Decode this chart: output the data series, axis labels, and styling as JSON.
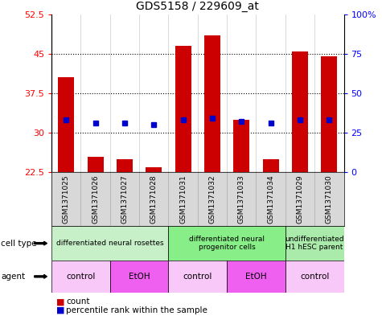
{
  "title": "GDS5158 / 229609_at",
  "samples": [
    "GSM1371025",
    "GSM1371026",
    "GSM1371027",
    "GSM1371028",
    "GSM1371031",
    "GSM1371032",
    "GSM1371033",
    "GSM1371034",
    "GSM1371029",
    "GSM1371030"
  ],
  "counts": [
    40.5,
    25.5,
    25.0,
    23.5,
    46.5,
    48.5,
    32.5,
    25.0,
    45.5,
    44.5
  ],
  "percentiles": [
    33,
    31,
    31,
    30,
    33,
    34,
    32,
    31,
    33,
    33
  ],
  "ylim_left": [
    22.5,
    52.5
  ],
  "ylim_right": [
    0,
    100
  ],
  "yticks_left": [
    22.5,
    30,
    37.5,
    45,
    52.5
  ],
  "yticks_right": [
    0,
    25,
    50,
    75,
    100
  ],
  "cell_types": [
    {
      "label": "differentiated neural rosettes",
      "start": 0,
      "end": 4,
      "color": "#c8f0c8"
    },
    {
      "label": "differentiated neural\nprogenitor cells",
      "start": 4,
      "end": 8,
      "color": "#88ee88"
    },
    {
      "label": "undifferentiated\nH1 hESC parent",
      "start": 8,
      "end": 10,
      "color": "#aaeaaa"
    }
  ],
  "agents": [
    {
      "label": "control",
      "start": 0,
      "end": 2,
      "color": "#f8c8f8"
    },
    {
      "label": "EtOH",
      "start": 2,
      "end": 4,
      "color": "#f060f0"
    },
    {
      "label": "control",
      "start": 4,
      "end": 6,
      "color": "#f8c8f8"
    },
    {
      "label": "EtOH",
      "start": 6,
      "end": 8,
      "color": "#f060f0"
    },
    {
      "label": "control",
      "start": 8,
      "end": 10,
      "color": "#f8c8f8"
    }
  ],
  "bar_color": "#cc0000",
  "percentile_color": "#0000cc",
  "background_color": "#ffffff",
  "label_row_label_fontsize": 7.5,
  "sample_fontsize": 6.5,
  "cell_type_fontsize": 6.5,
  "agent_fontsize": 7.5
}
